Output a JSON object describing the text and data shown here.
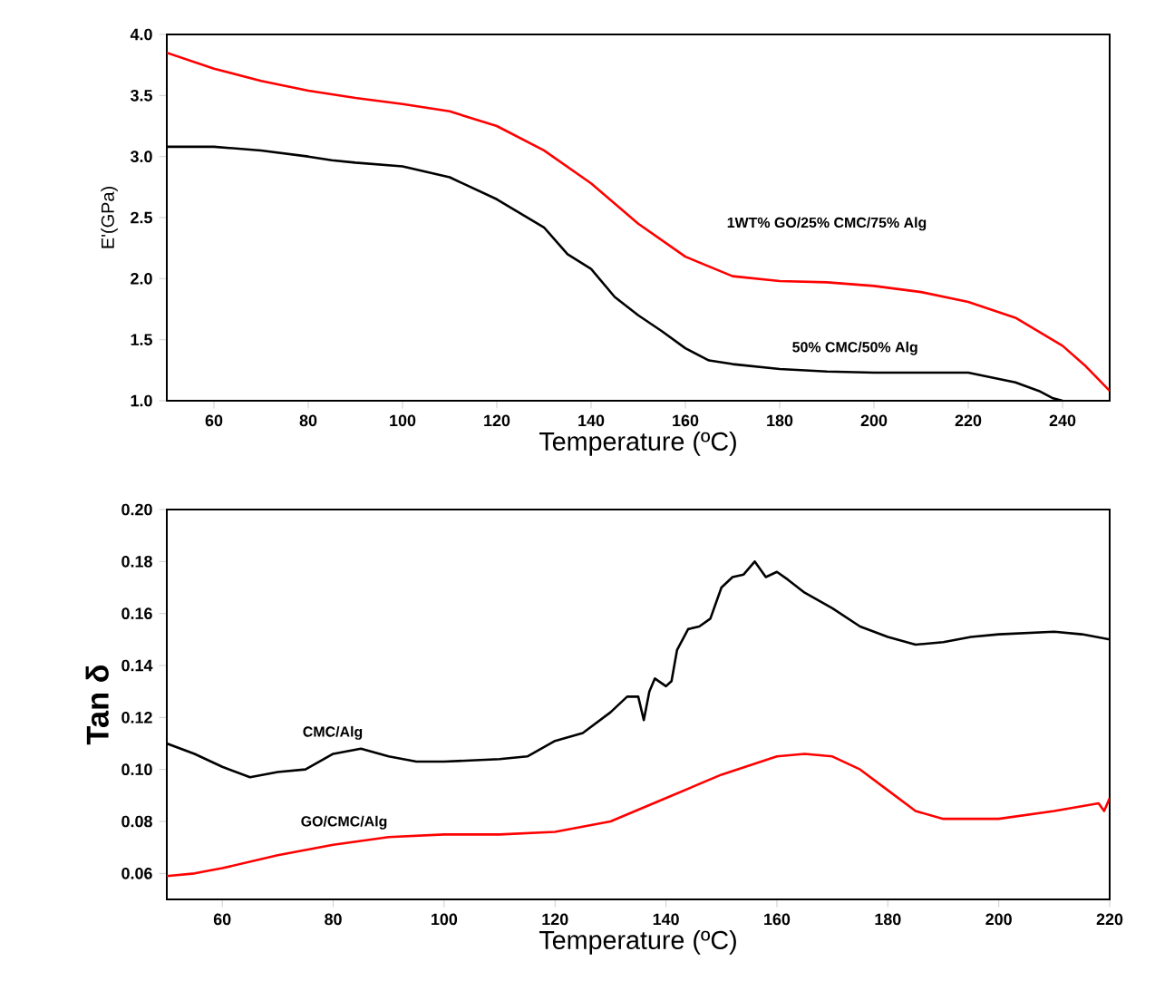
{
  "chart_data": [
    {
      "type": "line",
      "xlabel": "Temperature (ºC)",
      "ylabel": "E'(GPa)",
      "xlim": [
        50,
        250
      ],
      "ylim": [
        1.0,
        4.0
      ],
      "xticks": [
        60,
        80,
        100,
        120,
        140,
        160,
        180,
        200,
        220,
        240
      ],
      "yticks": [
        {
          "value": 1.0,
          "label": "1.0"
        },
        {
          "value": 1.5,
          "label": "1.5"
        },
        {
          "value": 2.0,
          "label": "2.0"
        },
        {
          "value": 2.5,
          "label": "2.5"
        },
        {
          "value": 3.0,
          "label": "3.0"
        },
        {
          "value": 3.5,
          "label": "3.5"
        },
        {
          "value": 4.0,
          "label": "4.0"
        }
      ],
      "series": [
        {
          "name": "1WT% GO/25% CMC/75% Alg",
          "color": "#ff0000",
          "x": [
            50,
            60,
            70,
            80,
            90,
            100,
            110,
            120,
            130,
            140,
            150,
            160,
            170,
            180,
            190,
            200,
            210,
            220,
            230,
            240,
            245,
            250
          ],
          "values": [
            3.85,
            3.72,
            3.62,
            3.54,
            3.48,
            3.43,
            3.37,
            3.25,
            3.05,
            2.78,
            2.45,
            2.18,
            2.02,
            1.98,
            1.97,
            1.94,
            1.89,
            1.81,
            1.68,
            1.45,
            1.28,
            1.08
          ]
        },
        {
          "name": "50% CMC/50% Alg",
          "color": "#000000",
          "x": [
            50,
            60,
            70,
            80,
            85,
            90,
            100,
            110,
            120,
            130,
            135,
            140,
            145,
            150,
            155,
            160,
            165,
            170,
            180,
            190,
            200,
            210,
            220,
            230,
            235,
            238,
            240
          ],
          "values": [
            3.08,
            3.08,
            3.05,
            3.0,
            2.97,
            2.95,
            2.92,
            2.83,
            2.65,
            2.42,
            2.2,
            2.08,
            1.85,
            1.7,
            1.57,
            1.43,
            1.33,
            1.3,
            1.26,
            1.24,
            1.23,
            1.23,
            1.23,
            1.15,
            1.08,
            1.02,
            1.0
          ]
        }
      ]
    },
    {
      "type": "line",
      "xlabel": "Temperature (ºC)",
      "ylabel": "Tan δ",
      "xlim": [
        50,
        220
      ],
      "ylim": [
        0.05,
        0.2
      ],
      "xticks": [
        60,
        80,
        100,
        120,
        140,
        160,
        180,
        200,
        220
      ],
      "yticks": [
        {
          "value": 0.06,
          "label": "0.06"
        },
        {
          "value": 0.08,
          "label": "0.08"
        },
        {
          "value": 0.1,
          "label": "0.10"
        },
        {
          "value": 0.12,
          "label": "0.12"
        },
        {
          "value": 0.14,
          "label": "0.14"
        },
        {
          "value": 0.16,
          "label": "0.16"
        },
        {
          "value": 0.18,
          "label": "0.18"
        },
        {
          "value": 0.2,
          "label": "0.20"
        }
      ],
      "series": [
        {
          "name": "CMC/Alg",
          "color": "#000000",
          "x": [
            50,
            55,
            60,
            65,
            70,
            75,
            80,
            85,
            90,
            95,
            100,
            110,
            115,
            120,
            125,
            130,
            133,
            135,
            136,
            137,
            138,
            140,
            141,
            142,
            144,
            146,
            148,
            150,
            152,
            154,
            156,
            158,
            160,
            162,
            165,
            170,
            175,
            180,
            185,
            190,
            195,
            200,
            210,
            215,
            220
          ],
          "values": [
            0.11,
            0.106,
            0.101,
            0.097,
            0.099,
            0.1,
            0.106,
            0.108,
            0.105,
            0.103,
            0.103,
            0.104,
            0.105,
            0.111,
            0.114,
            0.122,
            0.128,
            0.128,
            0.119,
            0.13,
            0.135,
            0.132,
            0.134,
            0.146,
            0.154,
            0.155,
            0.158,
            0.17,
            0.174,
            0.175,
            0.18,
            0.174,
            0.176,
            0.173,
            0.168,
            0.162,
            0.155,
            0.151,
            0.148,
            0.149,
            0.151,
            0.152,
            0.153,
            0.152,
            0.15
          ]
        },
        {
          "name": "GO/CMC/Alg",
          "color": "#ff0000",
          "x": [
            50,
            55,
            60,
            70,
            80,
            90,
            100,
            110,
            120,
            130,
            140,
            150,
            160,
            165,
            170,
            175,
            180,
            185,
            190,
            200,
            210,
            218,
            219,
            220
          ],
          "values": [
            0.059,
            0.06,
            0.062,
            0.067,
            0.071,
            0.074,
            0.075,
            0.075,
            0.076,
            0.08,
            0.089,
            0.098,
            0.105,
            0.106,
            0.105,
            0.1,
            0.092,
            0.084,
            0.081,
            0.081,
            0.084,
            0.087,
            0.084,
            0.089
          ]
        }
      ]
    }
  ]
}
